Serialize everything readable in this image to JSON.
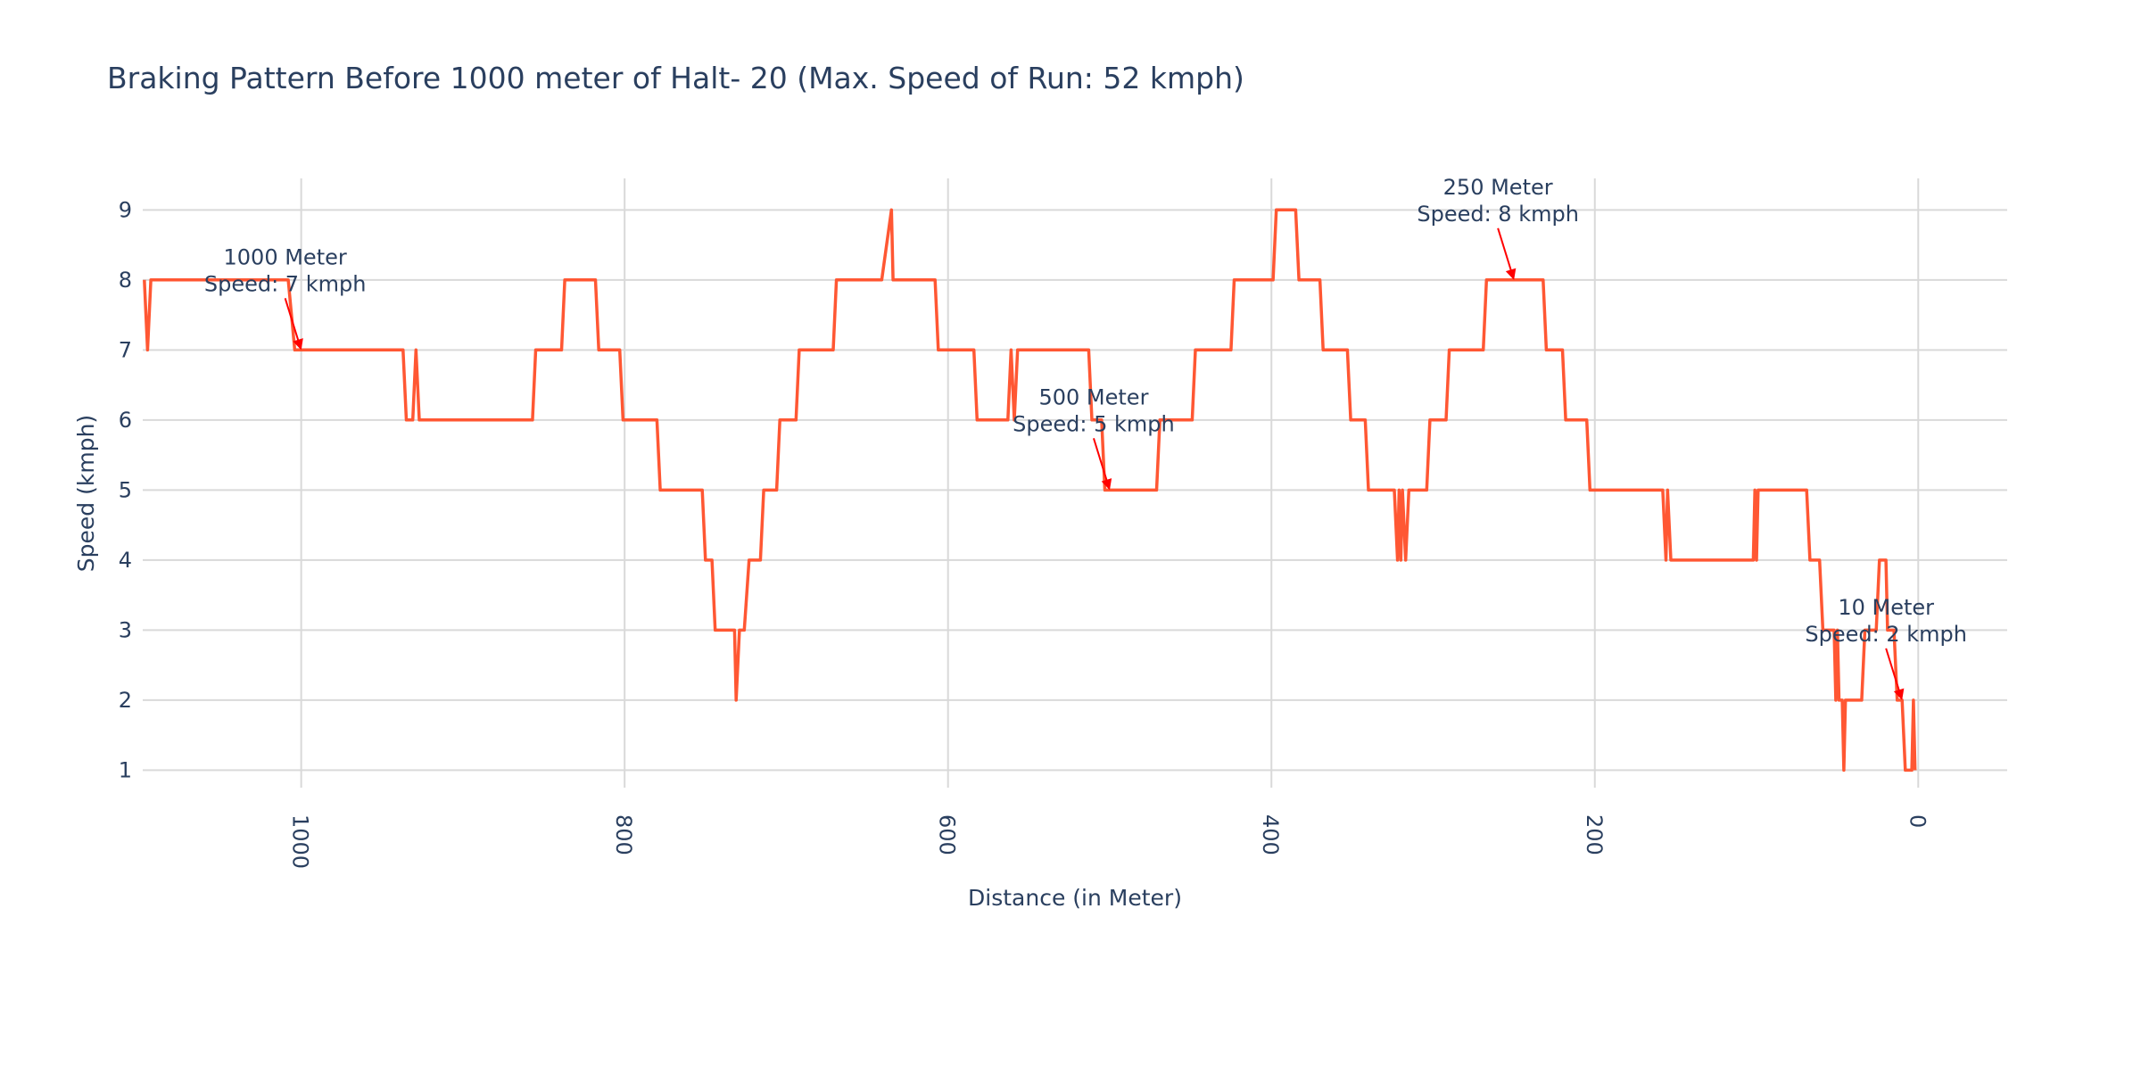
{
  "chart_data": {
    "type": "line",
    "title": "Braking Pattern Before 1000 meter of Halt- 20 (Max. Speed of Run: 52 kmph)",
    "xlabel": "Distance (in Meter)",
    "ylabel": "Speed (kmph)",
    "xlim": [
      1098,
      -55
    ],
    "ylim": [
      0.75,
      9.45
    ],
    "x_reversed": true,
    "x_ticks": [
      1000,
      800,
      600,
      400,
      200,
      0
    ],
    "x_tick_labels": [
      "1000",
      "800",
      "600",
      "400",
      "200",
      "0"
    ],
    "y_ticks": [
      1,
      2,
      3,
      4,
      5,
      6,
      7,
      8,
      9
    ],
    "y_tick_labels": [
      "1",
      "2",
      "3",
      "4",
      "5",
      "6",
      "7",
      "8",
      "9"
    ],
    "grid": true,
    "legend": false,
    "line_color": "#ff5733",
    "annotation_color": "#ff0000",
    "series": [
      {
        "x": [
          1097,
          1095,
          1093,
          1008,
          1004,
          937,
          935,
          931,
          929,
          927,
          857,
          855,
          839,
          837,
          818,
          816,
          803,
          801,
          780,
          778,
          752,
          750,
          746,
          744,
          732,
          731,
          729,
          727,
          726,
          723,
          716,
          714,
          706,
          704,
          694,
          692,
          671,
          669,
          641,
          635,
          634,
          633,
          608,
          606,
          584,
          582,
          563,
          561,
          559,
          557,
          513,
          511,
          505,
          503,
          471,
          469,
          449,
          447,
          425,
          423,
          399,
          397,
          385,
          383,
          370,
          368,
          353,
          351,
          342,
          340,
          324,
          322,
          321,
          320,
          319,
          317,
          315,
          304,
          302,
          292,
          290,
          269,
          267,
          232,
          230,
          220,
          218,
          205,
          203,
          158,
          156,
          155,
          153,
          102,
          101,
          100,
          99,
          96,
          69,
          67,
          61,
          59,
          52,
          51,
          50,
          49,
          47,
          46,
          45,
          35,
          33,
          26,
          24,
          20,
          19,
          15,
          13,
          12,
          10,
          8,
          7,
          6,
          5,
          4,
          3,
          2
        ],
        "y": [
          8,
          7,
          8,
          8,
          7,
          7,
          6,
          6,
          7,
          6,
          6,
          7,
          7,
          8,
          8,
          7,
          7,
          6,
          6,
          5,
          5,
          4,
          4,
          3,
          3,
          2,
          3,
          3,
          3,
          4,
          4,
          5,
          5,
          6,
          6,
          7,
          7,
          8,
          8,
          9,
          8,
          8,
          8,
          7,
          7,
          6,
          6,
          7,
          6,
          7,
          7,
          6,
          6,
          5,
          5,
          6,
          6,
          7,
          7,
          8,
          8,
          9,
          9,
          8,
          8,
          7,
          7,
          6,
          6,
          5,
          5,
          4,
          5,
          4,
          5,
          4,
          5,
          5,
          6,
          6,
          7,
          7,
          8,
          8,
          7,
          7,
          6,
          6,
          5,
          5,
          4,
          5,
          4,
          4,
          5,
          4,
          5,
          5,
          5,
          4,
          4,
          3,
          3,
          2,
          3,
          2,
          2,
          1,
          2,
          2,
          3,
          3,
          4,
          4,
          3,
          3,
          2,
          2,
          2,
          1,
          1,
          1,
          1,
          1,
          2,
          1
        ]
      }
    ],
    "annotations": [
      {
        "x": 1000,
        "y": 7,
        "line1": "1000 Meter",
        "line2": "Speed: 7 kmph",
        "ax": -18,
        "ay": -58
      },
      {
        "x": 500,
        "y": 5,
        "line1": "500 Meter",
        "line2": "Speed: 5 kmph",
        "ax": -18,
        "ay": -58
      },
      {
        "x": 250,
        "y": 8,
        "line1": "250 Meter",
        "line2": "Speed: 8 kmph",
        "ax": -18,
        "ay": -58
      },
      {
        "x": 10,
        "y": 2,
        "line1": "10 Meter",
        "line2": "Speed: 2 kmph",
        "ax": -18,
        "ay": -58
      }
    ]
  }
}
